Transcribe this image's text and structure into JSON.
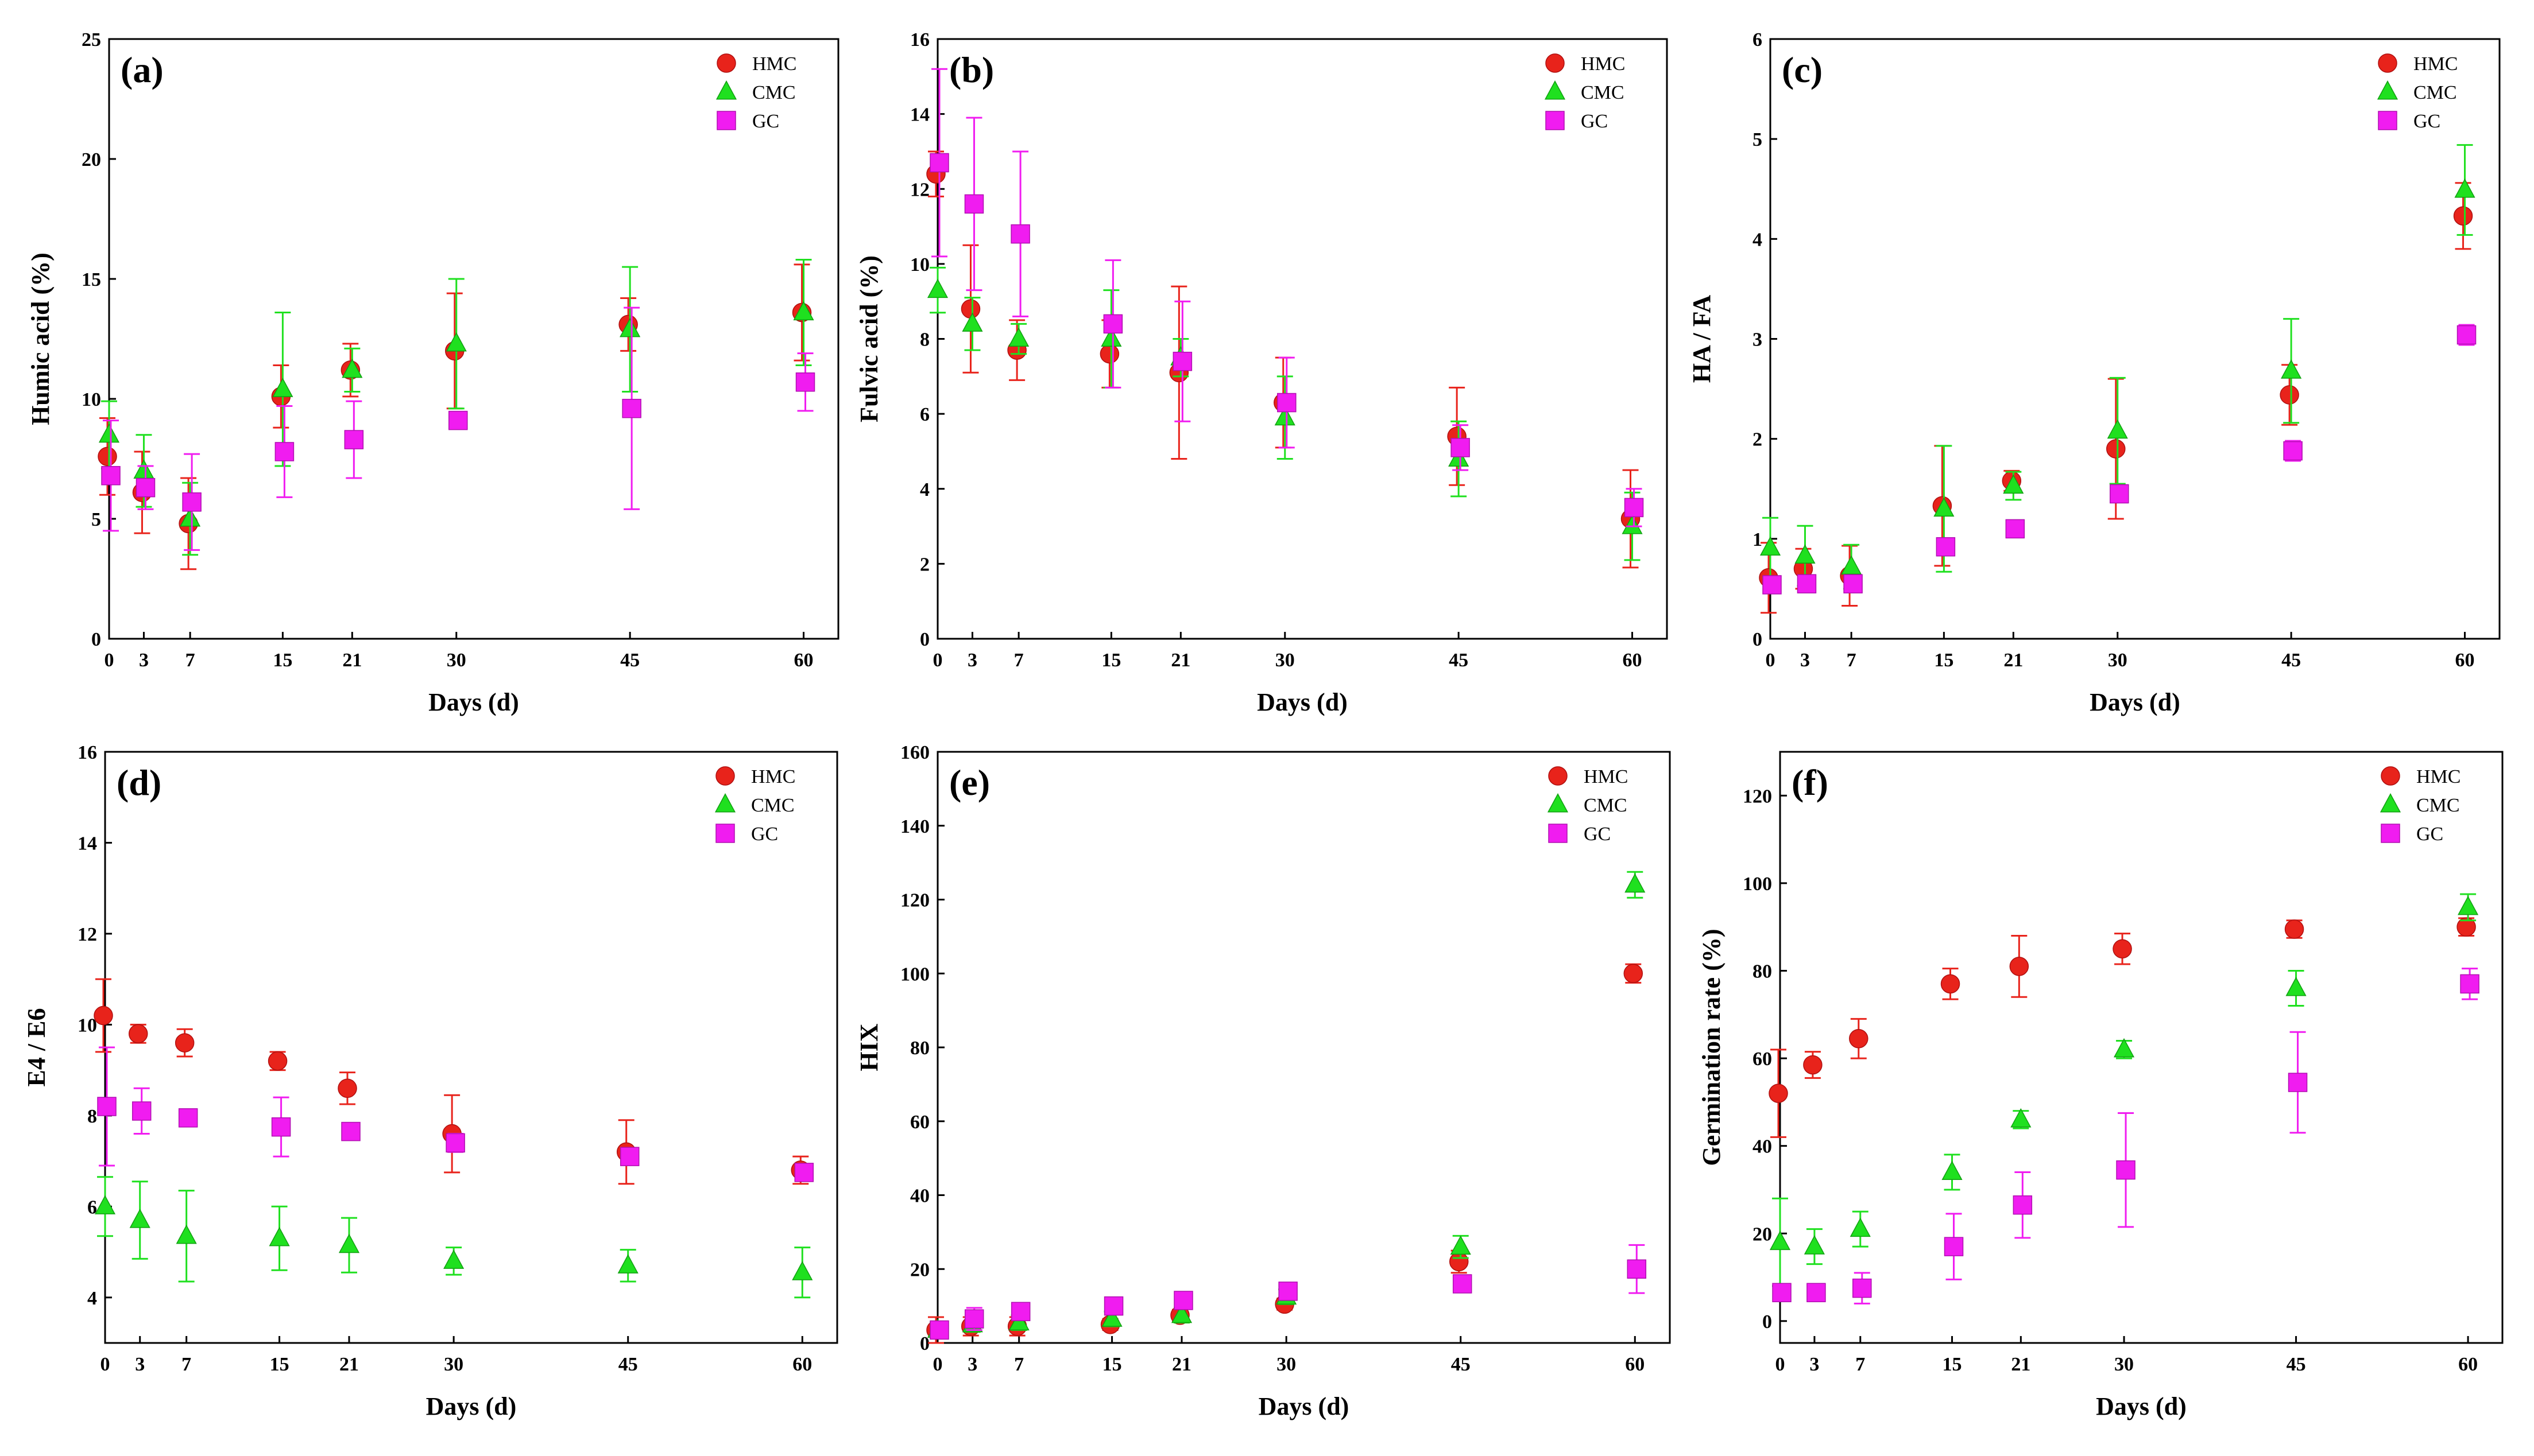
{
  "figure": {
    "x_label": "Days (d)",
    "days": [
      0,
      3,
      7,
      15,
      21,
      30,
      45,
      60
    ]
  },
  "series_meta": [
    {
      "name": "HMC",
      "color": "#e8231b",
      "marker": "circle"
    },
    {
      "name": "CMC",
      "color": "#1fe01f",
      "marker": "triangle"
    },
    {
      "name": "GC",
      "color": "#f01cf0",
      "marker": "square"
    }
  ],
  "chart_data": [
    {
      "type": "scatter",
      "panel_label": "(a)",
      "xlabel": "Days (d)",
      "ylabel": "Humic acid (%)",
      "x": [
        0,
        3,
        7,
        15,
        21,
        30,
        45,
        60
      ],
      "xlim": [
        0,
        63
      ],
      "ylim": [
        0,
        25
      ],
      "yticks": [
        0,
        5,
        10,
        15,
        20,
        25
      ],
      "legend": "top-right",
      "series": [
        {
          "name": "HMC",
          "values": [
            7.6,
            6.1,
            4.8,
            10.1,
            11.2,
            12.0,
            13.1,
            13.6
          ],
          "errors": [
            1.6,
            1.7,
            1.9,
            1.3,
            1.1,
            2.4,
            1.1,
            2.0
          ]
        },
        {
          "name": "CMC",
          "values": [
            8.5,
            7.0,
            5.0,
            10.4,
            11.2,
            12.3,
            12.9,
            13.6
          ],
          "errors": [
            1.4,
            1.5,
            1.5,
            3.2,
            0.9,
            2.7,
            2.6,
            2.2
          ]
        },
        {
          "name": "GC",
          "values": [
            6.8,
            6.3,
            5.7,
            7.8,
            8.3,
            9.1,
            9.6,
            10.7
          ],
          "errors": [
            2.3,
            0.9,
            2.0,
            1.9,
            1.6,
            0.3,
            4.2,
            1.2
          ]
        }
      ]
    },
    {
      "type": "scatter",
      "panel_label": "(b)",
      "xlabel": "Days (d)",
      "ylabel": "Fulvic acid (%)",
      "x": [
        0,
        3,
        7,
        15,
        21,
        30,
        45,
        60
      ],
      "xlim": [
        0,
        63
      ],
      "ylim": [
        0,
        16
      ],
      "yticks": [
        0,
        2,
        4,
        6,
        8,
        10,
        12,
        14,
        16
      ],
      "legend": "top-right",
      "series": [
        {
          "name": "HMC",
          "values": [
            12.4,
            8.8,
            7.7,
            7.6,
            7.1,
            6.3,
            5.4,
            3.2
          ],
          "errors": [
            0.6,
            1.7,
            0.8,
            0.9,
            2.3,
            1.2,
            1.3,
            1.3
          ]
        },
        {
          "name": "CMC",
          "values": [
            9.3,
            8.4,
            8.0,
            8.0,
            7.5,
            5.9,
            4.8,
            3.0
          ],
          "errors": [
            0.6,
            0.7,
            0.4,
            1.3,
            0.5,
            1.1,
            1.0,
            0.9
          ]
        },
        {
          "name": "GC",
          "values": [
            12.7,
            11.6,
            10.8,
            8.4,
            7.4,
            6.3,
            5.1,
            3.5
          ],
          "errors": [
            2.5,
            2.3,
            2.2,
            1.7,
            1.6,
            1.2,
            0.6,
            0.5
          ]
        }
      ]
    },
    {
      "type": "scatter",
      "panel_label": "(c)",
      "xlabel": "Days (d)",
      "ylabel": "HA / FA",
      "x": [
        0,
        3,
        7,
        15,
        21,
        30,
        45,
        60
      ],
      "xlim": [
        0,
        63
      ],
      "ylim": [
        0,
        6
      ],
      "yticks": [
        0,
        1,
        2,
        3,
        4,
        5,
        6
      ],
      "legend": "top-right",
      "series": [
        {
          "name": "HMC",
          "values": [
            0.61,
            0.7,
            0.63,
            1.33,
            1.58,
            1.9,
            2.44,
            4.23
          ],
          "errors": [
            0.35,
            0.2,
            0.3,
            0.6,
            0.1,
            0.7,
            0.3,
            0.33
          ]
        },
        {
          "name": "CMC",
          "values": [
            0.91,
            0.83,
            0.72,
            1.3,
            1.53,
            2.08,
            2.68,
            4.49
          ],
          "errors": [
            0.3,
            0.3,
            0.22,
            0.63,
            0.14,
            0.53,
            0.52,
            0.45
          ]
        },
        {
          "name": "GC",
          "values": [
            0.54,
            0.55,
            0.55,
            0.92,
            1.1,
            1.45,
            1.88,
            3.04
          ],
          "errors": [
            0.06,
            0.06,
            0.07,
            0.07,
            0.05,
            0.07,
            0.1,
            0.1
          ]
        }
      ]
    },
    {
      "type": "scatter",
      "panel_label": "(d)",
      "xlabel": "Days (d)",
      "ylabel": "E4 / E6",
      "x": [
        0,
        3,
        7,
        15,
        21,
        30,
        45,
        60
      ],
      "xlim": [
        0,
        63
      ],
      "ylim": [
        3,
        16
      ],
      "yticks": [
        4,
        6,
        8,
        10,
        12,
        14,
        16
      ],
      "legend": "top-right",
      "series": [
        {
          "name": "HMC",
          "values": [
            10.2,
            9.8,
            9.6,
            9.2,
            8.6,
            7.6,
            7.2,
            6.8
          ],
          "errors": [
            0.8,
            0.2,
            0.3,
            0.2,
            0.35,
            0.85,
            0.7,
            0.3
          ]
        },
        {
          "name": "CMC",
          "values": [
            6.0,
            5.7,
            5.35,
            5.3,
            5.15,
            4.8,
            4.7,
            4.55
          ],
          "errors": [
            0.65,
            0.85,
            1.0,
            0.7,
            0.6,
            0.3,
            0.35,
            0.55
          ]
        },
        {
          "name": "GC",
          "values": [
            8.2,
            8.1,
            7.95,
            7.75,
            7.65,
            7.4,
            7.1,
            6.75
          ],
          "errors": [
            1.3,
            0.5,
            0.1,
            0.65,
            0.15,
            0.2,
            0.15,
            0.1
          ]
        }
      ]
    },
    {
      "type": "scatter",
      "panel_label": "(e)",
      "xlabel": "Days (d)",
      "ylabel": "HIX",
      "x": [
        0,
        3,
        7,
        15,
        21,
        30,
        45,
        60
      ],
      "xlim": [
        0,
        63
      ],
      "ylim": [
        0,
        160
      ],
      "yticks": [
        0,
        20,
        40,
        60,
        80,
        100,
        120,
        140,
        160
      ],
      "legend": "top-right",
      "series": [
        {
          "name": "HMC",
          "values": [
            3.5,
            4.5,
            4.5,
            5.0,
            7.5,
            10.5,
            22.0,
            100.0
          ],
          "errors": [
            3.5,
            2.5,
            2.5,
            1.5,
            1.5,
            1.5,
            3.0,
            2.5
          ]
        },
        {
          "name": "CMC",
          "values": [
            3.5,
            5.0,
            5.5,
            6.5,
            7.5,
            12.5,
            26.0,
            124.0
          ],
          "errors": [
            2.0,
            2.0,
            2.0,
            2.0,
            2.0,
            2.0,
            3.0,
            3.5
          ]
        },
        {
          "name": "GC",
          "values": [
            3.5,
            6.5,
            8.5,
            10.0,
            11.5,
            14.0,
            16.0,
            20.0
          ],
          "errors": [
            2.0,
            3.0,
            2.0,
            2.0,
            2.0,
            2.0,
            2.0,
            6.5
          ]
        }
      ]
    },
    {
      "type": "scatter",
      "panel_label": "(f)",
      "xlabel": "Days (d)",
      "ylabel": "Germination rate (%)",
      "x": [
        0,
        3,
        7,
        15,
        21,
        30,
        45,
        60
      ],
      "xlim": [
        0,
        63
      ],
      "ylim": [
        -5,
        130
      ],
      "yticks": [
        0,
        20,
        40,
        60,
        80,
        100,
        120
      ],
      "legend": "top-right",
      "series": [
        {
          "name": "HMC",
          "values": [
            52,
            58.5,
            64.5,
            77,
            81,
            85,
            89.5,
            90
          ],
          "errors": [
            10,
            3,
            4.5,
            3.5,
            7,
            3.5,
            2,
            2
          ]
        },
        {
          "name": "CMC",
          "values": [
            18,
            17,
            21,
            34,
            46,
            62,
            76,
            94.5
          ],
          "errors": [
            10,
            4,
            4,
            4,
            2,
            2,
            4,
            3
          ]
        },
        {
          "name": "GC",
          "values": [
            6.5,
            6.5,
            7.5,
            17,
            26.5,
            34.5,
            54.5,
            77
          ],
          "errors": [
            1.5,
            1.5,
            3.5,
            7.5,
            7.5,
            13,
            11.5,
            3.5
          ]
        }
      ]
    }
  ]
}
